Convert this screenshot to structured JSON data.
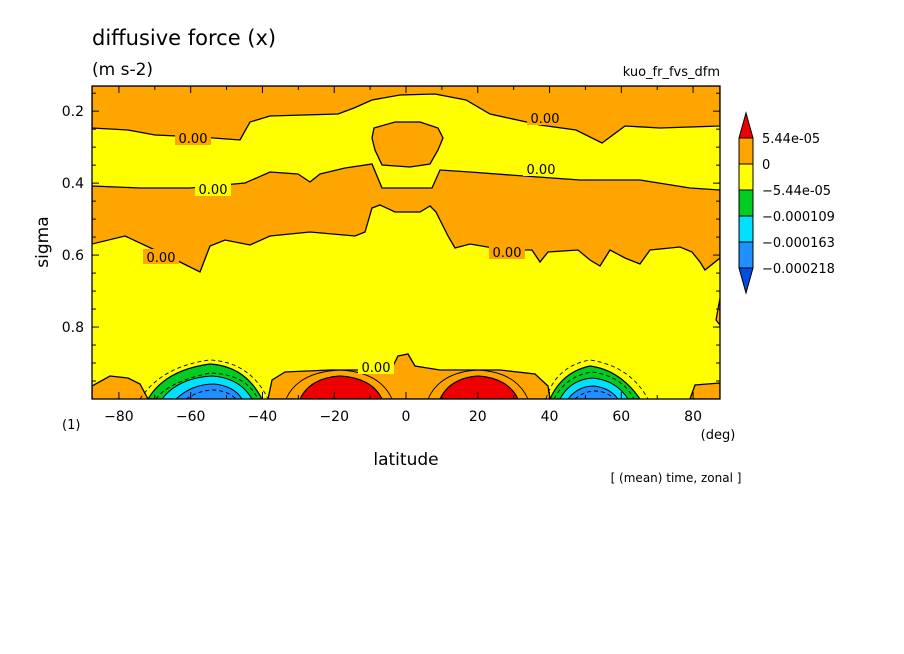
{
  "header": {
    "title": "diffusive force (x)",
    "units": "(m s-2)",
    "run_id": "kuo_fr_fvs_dfm",
    "panel_label": "(1)",
    "footer_note": "[ (mean) time, zonal ]"
  },
  "chart_data": {
    "type": "contour",
    "title": "diffusive force (x)",
    "units": "m s-2",
    "xlabel": "latitude",
    "xunit": "(deg)",
    "ylabel": "sigma",
    "xlim": [
      -87.5,
      87.5
    ],
    "ylim": [
      1.0,
      0.13
    ],
    "x_ticks": [
      -80,
      -60,
      -40,
      -20,
      0,
      20,
      40,
      60,
      80
    ],
    "x_tick_labels": [
      "−80",
      "−60",
      "−40",
      "−20",
      "0",
      "20",
      "40",
      "60",
      "80"
    ],
    "y_ticks": [
      0.2,
      0.4,
      0.6,
      0.8
    ],
    "y_tick_labels": [
      "0.2",
      "0.4",
      "0.6",
      "0.8"
    ],
    "contour_labels": [
      "0.00",
      "0.00",
      "0.00",
      "0.00",
      "0.00",
      "0.00",
      "0.00"
    ],
    "colorbar": {
      "levels": [
        "5.44e-05",
        "0",
        "−5.44e-05",
        "−0.000109",
        "−0.000163",
        "−0.000218"
      ],
      "colors": [
        "#ee0000",
        "#ffa500",
        "#ffff00",
        "#00cc22",
        "#00e0ff",
        "#1e90ff",
        "#0050e0"
      ]
    },
    "regions": [
      {
        "kind": "positive-max",
        "lat": -20,
        "sigma": 0.97,
        "color": "#ee0000"
      },
      {
        "kind": "positive-max",
        "lat": 20,
        "sigma": 0.97,
        "color": "#ee0000"
      },
      {
        "kind": "negative-min",
        "lat": -55,
        "sigma": 0.98,
        "color": "#1e90ff"
      },
      {
        "kind": "negative-min",
        "lat": 50,
        "sigma": 0.98,
        "color": "#1e90ff"
      }
    ]
  }
}
